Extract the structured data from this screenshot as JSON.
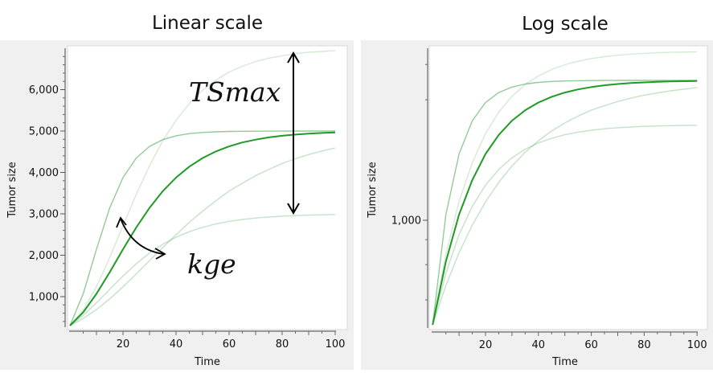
{
  "chart_data": [
    {
      "type": "line",
      "title": "Linear scale",
      "xlabel": "Time",
      "ylabel": "Tumor size",
      "yscale": "linear",
      "xlim": [
        0,
        100
      ],
      "ylim": [
        250,
        7100
      ],
      "xticks": [
        20,
        40,
        60,
        80,
        100
      ],
      "xtick_labels": [
        "20",
        "40",
        "60",
        "80",
        "100"
      ],
      "yticks": [
        1000,
        2000,
        3000,
        4000,
        5000,
        6000
      ],
      "ytick_labels": [
        "1,000",
        "2,000",
        "3,000",
        "4,000",
        "5,000",
        "6,000"
      ],
      "grid": false,
      "annotations": [
        {
          "text": "TSmax",
          "arrow": "double-vertical",
          "arrow_x": 84,
          "arrow_y": [
            3000,
            7000
          ]
        },
        {
          "text": "kge",
          "arrow": "curved-double"
        }
      ],
      "x": [
        0,
        5,
        10,
        15,
        20,
        25,
        30,
        35,
        40,
        45,
        50,
        55,
        60,
        65,
        70,
        75,
        80,
        85,
        90,
        95,
        100
      ],
      "series": [
        {
          "role": "reference",
          "color": "#1f9a24",
          "opacity": 1,
          "values": [
            300,
            622,
            1068,
            1590,
            2144,
            2670,
            3144,
            3548,
            3875,
            4139,
            4347,
            4506,
            4630,
            4724,
            4793,
            4846,
            4885,
            4915,
            4937,
            4953,
            4965
          ]
        },
        {
          "role": "fast",
          "color": "#3a9f46",
          "opacity": 0.55,
          "values": [
            300,
            1068,
            2144,
            3144,
            3875,
            4347,
            4630,
            4793,
            4885,
            4937,
            4965,
            4981,
            4990,
            4994,
            4997,
            4998,
            4999,
            5000,
            5000,
            5000,
            5000
          ]
        },
        {
          "role": "slow",
          "color": "#3a9f46",
          "opacity": 0.3,
          "values": [
            300,
            472,
            689,
            946,
            1236,
            1547,
            1867,
            2187,
            2495,
            2795,
            3065,
            3315,
            3550,
            3740,
            3920,
            4075,
            4215,
            4332,
            4432,
            4519,
            4593
          ]
        },
        {
          "role": "high",
          "color": "#3a9f46",
          "opacity": 0.22,
          "values": [
            300,
            678,
            1243,
            1943,
            2713,
            3469,
            4162,
            4767,
            5257,
            5663,
            5985,
            6230,
            6426,
            6566,
            6678,
            6762,
            6818,
            6867,
            6902,
            6923,
            6944
          ]
        },
        {
          "role": "low",
          "color": "#3a9f46",
          "opacity": 0.3,
          "values": [
            300,
            544,
            848,
            1175,
            1500,
            1794,
            2052,
            2265,
            2434,
            2569,
            2674,
            2755,
            2817,
            2864,
            2899,
            2924,
            2944,
            2958,
            2969,
            2977,
            2983
          ]
        }
      ]
    },
    {
      "type": "line",
      "title": "Log scale",
      "xlabel": "Time",
      "ylabel": "Tumor size",
      "yscale": "log",
      "xlim": [
        0,
        100
      ],
      "ylim": [
        290,
        7500
      ],
      "xticks": [
        20,
        40,
        60,
        80,
        100
      ],
      "xtick_labels": [
        "20",
        "40",
        "60",
        "80",
        "100"
      ],
      "yticks": [
        1000
      ],
      "ytick_labels": [
        "1,000"
      ],
      "grid": false,
      "x": [
        0,
        5,
        10,
        15,
        20,
        25,
        30,
        35,
        40,
        45,
        50,
        55,
        60,
        65,
        70,
        75,
        80,
        85,
        90,
        95,
        100
      ],
      "series": [
        {
          "role": "reference",
          "color": "#1f9a24",
          "opacity": 1,
          "values": [
            300,
            622,
            1068,
            1590,
            2144,
            2670,
            3144,
            3548,
            3875,
            4139,
            4347,
            4506,
            4630,
            4724,
            4793,
            4846,
            4885,
            4915,
            4937,
            4953,
            4965
          ]
        },
        {
          "role": "fast",
          "color": "#3a9f46",
          "opacity": 0.55,
          "values": [
            300,
            1068,
            2144,
            3144,
            3875,
            4347,
            4630,
            4793,
            4885,
            4937,
            4965,
            4981,
            4990,
            4994,
            4997,
            4998,
            4999,
            5000,
            5000,
            5000,
            5000
          ]
        },
        {
          "role": "slow",
          "color": "#3a9f46",
          "opacity": 0.3,
          "values": [
            300,
            472,
            689,
            946,
            1236,
            1547,
            1867,
            2187,
            2495,
            2795,
            3065,
            3315,
            3550,
            3740,
            3920,
            4075,
            4215,
            4332,
            4432,
            4519,
            4593
          ]
        },
        {
          "role": "high",
          "color": "#3a9f46",
          "opacity": 0.22,
          "values": [
            300,
            678,
            1243,
            1943,
            2713,
            3469,
            4162,
            4767,
            5257,
            5663,
            5985,
            6230,
            6426,
            6566,
            6678,
            6762,
            6818,
            6867,
            6902,
            6923,
            6944
          ]
        },
        {
          "role": "low",
          "color": "#3a9f46",
          "opacity": 0.3,
          "values": [
            300,
            544,
            848,
            1175,
            1500,
            1794,
            2052,
            2265,
            2434,
            2569,
            2674,
            2755,
            2817,
            2864,
            2899,
            2924,
            2944,
            2958,
            2969,
            2977,
            2983
          ]
        }
      ]
    }
  ]
}
